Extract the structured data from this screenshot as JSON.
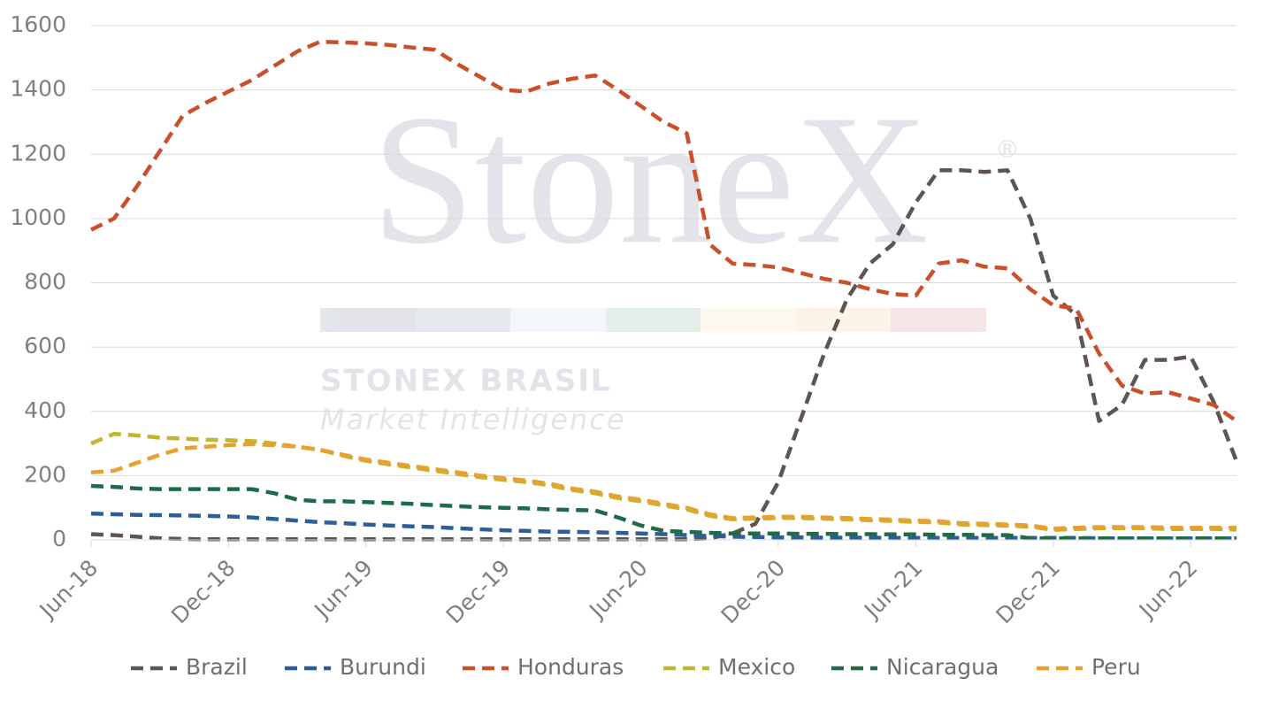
{
  "chart_data": {
    "type": "line",
    "watermark": {
      "title": "StoneX",
      "mark": "®",
      "subtitle": "STONEX BRASIL",
      "tagline": "Market Intelligence"
    },
    "x": [
      "Jun-18",
      null,
      null,
      null,
      null,
      null,
      "Dec-18",
      null,
      null,
      null,
      null,
      null,
      "Jun-19",
      null,
      null,
      null,
      null,
      null,
      "Dec-19",
      null,
      null,
      null,
      null,
      null,
      "Jun-20",
      null,
      null,
      null,
      null,
      null,
      "Dec-20",
      null,
      null,
      null,
      null,
      null,
      "Jun-21",
      null,
      null,
      null,
      null,
      null,
      "Dec-21",
      null,
      null,
      null,
      null,
      null,
      "Jun-22",
      null,
      null
    ],
    "ylim": [
      0,
      1600
    ],
    "yticks": [
      0,
      200,
      400,
      600,
      800,
      1000,
      1200,
      1400,
      1600
    ],
    "grid": true,
    "series": [
      {
        "name": "Brazil",
        "color": "#5f5550",
        "values": [
          18,
          15,
          10,
          5,
          3,
          2,
          2,
          2,
          2,
          2,
          2,
          2,
          2,
          2,
          2,
          2,
          2,
          2,
          2,
          2,
          2,
          2,
          2,
          2,
          2,
          2,
          2,
          5,
          20,
          50,
          180,
          380,
          580,
          750,
          860,
          920,
          1050,
          1150,
          1150,
          1145,
          1150,
          1000,
          760,
          700,
          370,
          420,
          560,
          560,
          570,
          430,
          245
        ]
      },
      {
        "name": "Burundi",
        "color": "#2e5e99",
        "values": [
          82,
          80,
          78,
          77,
          76,
          75,
          73,
          70,
          65,
          60,
          55,
          52,
          48,
          45,
          42,
          40,
          36,
          33,
          30,
          28,
          26,
          25,
          24,
          22,
          20,
          18,
          15,
          12,
          10,
          9,
          8,
          8,
          7,
          7,
          7,
          6,
          6,
          6,
          6,
          6,
          6,
          6,
          6,
          6,
          5,
          5,
          5,
          5,
          5,
          5,
          5
        ]
      },
      {
        "name": "Honduras",
        "color": "#c9502a",
        "values": [
          965,
          1000,
          1100,
          1210,
          1320,
          1360,
          1395,
          1430,
          1475,
          1520,
          1550,
          1548,
          1545,
          1540,
          1532,
          1525,
          1480,
          1440,
          1400,
          1395,
          1420,
          1435,
          1445,
          1400,
          1350,
          1300,
          1265,
          920,
          860,
          855,
          848,
          830,
          812,
          800,
          780,
          765,
          760,
          860,
          870,
          850,
          845,
          780,
          730,
          720,
          580,
          480,
          455,
          460,
          440,
          420,
          370
        ]
      },
      {
        "name": "Mexico",
        "color": "#c2b530",
        "values": [
          300,
          330,
          325,
          318,
          315,
          312,
          310,
          308,
          300,
          290,
          280,
          262,
          246,
          235,
          225,
          215,
          205,
          195,
          187,
          180,
          170,
          155,
          145,
          130,
          120,
          107,
          95,
          75,
          64,
          66,
          68,
          68,
          66,
          64,
          61,
          59,
          56,
          54,
          48,
          46,
          44,
          41,
          31,
          34,
          36,
          36,
          36,
          34,
          34,
          34,
          32
        ]
      },
      {
        "name": "Nicaragua",
        "color": "#1f6b47",
        "values": [
          168,
          165,
          160,
          158,
          158,
          158,
          158,
          158,
          145,
          125,
          120,
          120,
          118,
          115,
          112,
          108,
          105,
          102,
          100,
          98,
          95,
          93,
          92,
          70,
          45,
          28,
          25,
          22,
          20,
          20,
          20,
          19,
          19,
          18,
          18,
          17,
          17,
          16,
          16,
          15,
          15,
          5,
          5,
          5,
          5,
          5,
          5,
          5,
          5,
          5,
          5
        ]
      },
      {
        "name": "Peru",
        "color": "#e8a030",
        "values": [
          210,
          215,
          240,
          265,
          285,
          290,
          295,
          298,
          295,
          290,
          280,
          265,
          250,
          240,
          230,
          220,
          210,
          200,
          192,
          185,
          175,
          160,
          150,
          135,
          125,
          112,
          100,
          80,
          68,
          70,
          72,
          72,
          70,
          68,
          65,
          63,
          60,
          58,
          52,
          50,
          48,
          45,
          35,
          38,
          40,
          40,
          40,
          38,
          38,
          38,
          38
        ]
      }
    ]
  }
}
